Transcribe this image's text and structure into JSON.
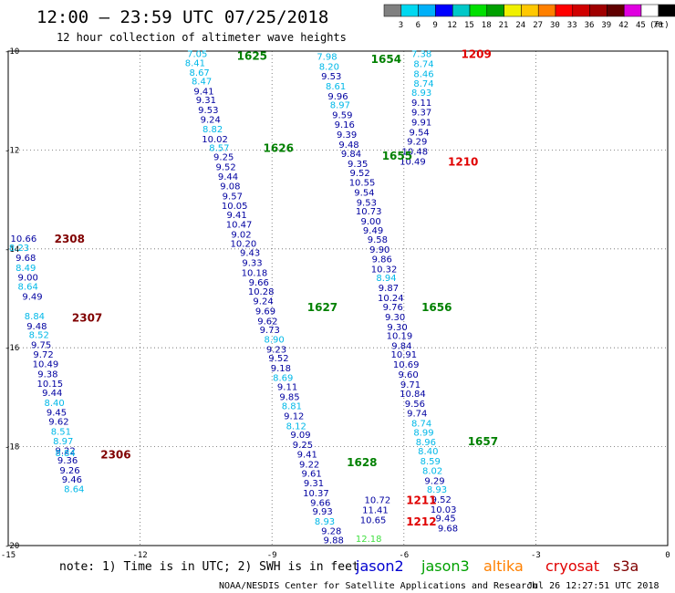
{
  "header": {
    "title": "12:00 — 23:59 UTC 07/25/2018",
    "subtitle": "12 hour collection of altimeter wave heights"
  },
  "color_bar": {
    "unit": "(ft)",
    "colors": [
      "#808080",
      "#00d8f0",
      "#00b0f8",
      "#0000ff",
      "#00c8c8",
      "#00e000",
      "#00a000",
      "#f0f000",
      "#ffc800",
      "#ff8000",
      "#ff0000",
      "#d00000",
      "#a00000",
      "#600000",
      "#e000e0",
      "#ffffff",
      "#000000"
    ],
    "labels": [
      "3",
      "6",
      "9",
      "12",
      "15",
      "18",
      "21",
      "24",
      "27",
      "30",
      "33",
      "36",
      "39",
      "42",
      "45",
      "70"
    ]
  },
  "chart_data": {
    "type": "scatter",
    "xlim": [
      -15,
      0
    ],
    "ylim": [
      -20,
      -10
    ],
    "x_ticks": [
      "-15",
      "-12",
      "-9",
      "-6",
      "-3",
      "0"
    ],
    "y_ticks": [
      "-10",
      "-12",
      "-14",
      "-16",
      "-18",
      "-20"
    ],
    "grid": true,
    "series": [
      {
        "name": "jason2 1625-1626-1627-1628",
        "color": "#0000a0",
        "points": [
          [
            -10.7,
            -10.05,
            "7.05"
          ],
          [
            -10.75,
            -10.23,
            "8.41"
          ],
          [
            -10.65,
            -10.42,
            "8.67"
          ],
          [
            -10.6,
            -10.6,
            "8.47"
          ],
          [
            -10.55,
            -10.8,
            "9.41"
          ],
          [
            -10.5,
            -10.98,
            "9.31"
          ],
          [
            -10.45,
            -11.18,
            "9.53"
          ],
          [
            -10.4,
            -11.37,
            "9.24"
          ],
          [
            -10.35,
            -11.57,
            "8.82"
          ],
          [
            -10.3,
            -11.77,
            "10.02"
          ],
          [
            -10.2,
            -11.95,
            "8.57"
          ],
          [
            -10.1,
            -12.13,
            "9.25"
          ],
          [
            -10.05,
            -12.33,
            "9.52"
          ],
          [
            -10.0,
            -12.53,
            "9.44"
          ],
          [
            -9.95,
            -12.72,
            "9.08"
          ],
          [
            -9.9,
            -12.92,
            "9.57"
          ],
          [
            -9.85,
            -13.12,
            "10.05"
          ],
          [
            -9.8,
            -13.3,
            "9.41"
          ],
          [
            -9.75,
            -13.5,
            "10.47"
          ],
          [
            -9.7,
            -13.7,
            "9.02"
          ],
          [
            -9.65,
            -13.88,
            "10.20"
          ],
          [
            -9.5,
            -14.07,
            "9.43"
          ],
          [
            -9.45,
            -14.27,
            "9.33"
          ],
          [
            -9.4,
            -14.47,
            "10.18"
          ],
          [
            -9.3,
            -14.67,
            "9.66"
          ],
          [
            -9.25,
            -14.85,
            "10.28"
          ],
          [
            -9.2,
            -15.05,
            "9.24"
          ],
          [
            -9.15,
            -15.25,
            "9.69"
          ],
          [
            -9.1,
            -15.45,
            "9.62"
          ],
          [
            -9.05,
            -15.63,
            "9.73"
          ],
          [
            -8.95,
            -15.82,
            "8.90"
          ],
          [
            -8.9,
            -16.02,
            "9.23"
          ],
          [
            -8.85,
            -16.2,
            "9.52"
          ],
          [
            -8.8,
            -16.4,
            "9.18"
          ],
          [
            -8.75,
            -16.6,
            "8.69"
          ],
          [
            -8.65,
            -16.78,
            "9.11"
          ],
          [
            -8.6,
            -16.98,
            "9.85"
          ],
          [
            -8.55,
            -17.17,
            "8.81"
          ],
          [
            -8.5,
            -17.37,
            "9.12"
          ],
          [
            -8.45,
            -17.57,
            "8.12"
          ],
          [
            -8.35,
            -17.75,
            "9.09"
          ],
          [
            -8.3,
            -17.95,
            "9.25"
          ],
          [
            -8.2,
            -18.15,
            "9.41"
          ],
          [
            -8.15,
            -18.35,
            "9.22"
          ],
          [
            -8.1,
            -18.53,
            "9.61"
          ],
          [
            -8.05,
            -18.73,
            "9.31"
          ],
          [
            -8.0,
            -18.93,
            "10.37"
          ],
          [
            -7.9,
            -19.12,
            "9.66"
          ],
          [
            -7.85,
            -19.3,
            "9.93"
          ],
          [
            -7.8,
            -19.5,
            "8.93"
          ],
          [
            -7.65,
            -19.7,
            "9.28"
          ],
          [
            -7.6,
            -19.88,
            "9.88"
          ]
        ]
      },
      {
        "name": "jason2 1654-1655-1656-1657",
        "color": "#0000a0",
        "points": [
          [
            -7.75,
            -10.1,
            "7.98"
          ],
          [
            -7.7,
            -10.3,
            "8.20"
          ],
          [
            -7.65,
            -10.5,
            "9.53"
          ],
          [
            -7.55,
            -10.7,
            "8.61"
          ],
          [
            -7.5,
            -10.9,
            "9.96"
          ],
          [
            -7.45,
            -11.08,
            "8.97"
          ],
          [
            -7.4,
            -11.28,
            "9.59"
          ],
          [
            -7.35,
            -11.48,
            "9.16"
          ],
          [
            -7.3,
            -11.68,
            "9.39"
          ],
          [
            -7.25,
            -11.88,
            "9.48"
          ],
          [
            -7.2,
            -12.07,
            "9.84"
          ],
          [
            -7.05,
            -12.27,
            "9.35"
          ],
          [
            -7.0,
            -12.45,
            "9.52"
          ],
          [
            -6.95,
            -12.65,
            "10.55"
          ],
          [
            -6.9,
            -12.85,
            "9.54"
          ],
          [
            -6.85,
            -13.05,
            "9.53"
          ],
          [
            -6.8,
            -13.23,
            "10.73"
          ],
          [
            -6.75,
            -13.43,
            "9.00"
          ],
          [
            -6.7,
            -13.62,
            "9.49"
          ],
          [
            -6.6,
            -13.8,
            "9.58"
          ],
          [
            -6.55,
            -14.0,
            "9.90"
          ],
          [
            -6.5,
            -14.2,
            "9.86"
          ],
          [
            -6.45,
            -14.4,
            "10.32"
          ],
          [
            -6.4,
            -14.58,
            "8.94"
          ],
          [
            -6.35,
            -14.78,
            "9.87"
          ],
          [
            -6.3,
            -14.98,
            "10.24"
          ],
          [
            -6.25,
            -15.17,
            "9.76"
          ],
          [
            -6.2,
            -15.37,
            "9.30"
          ],
          [
            -6.15,
            -15.57,
            "9.30"
          ],
          [
            -6.1,
            -15.75,
            "10.19"
          ],
          [
            -6.05,
            -15.95,
            "9.84"
          ],
          [
            -6.0,
            -16.13,
            "10.91"
          ],
          [
            -5.95,
            -16.33,
            "10.69"
          ],
          [
            -5.9,
            -16.53,
            "9.60"
          ],
          [
            -5.85,
            -16.73,
            "9.71"
          ],
          [
            -5.8,
            -16.92,
            "10.84"
          ],
          [
            -5.75,
            -17.12,
            "9.56"
          ],
          [
            -5.7,
            -17.32,
            "9.74"
          ],
          [
            -5.6,
            -17.52,
            "8.74"
          ],
          [
            -5.55,
            -17.7,
            "8.99"
          ],
          [
            -5.5,
            -17.9,
            "8.96"
          ],
          [
            -5.45,
            -18.08,
            "8.40"
          ],
          [
            -5.4,
            -18.28,
            "8.59"
          ],
          [
            -5.35,
            -18.48,
            "8.02"
          ],
          [
            -5.3,
            -18.68,
            "9.29"
          ],
          [
            -5.25,
            -18.86,
            "8.93"
          ],
          [
            -5.15,
            -19.06,
            "9.52"
          ],
          [
            -5.1,
            -19.26,
            "10.03"
          ],
          [
            -5.05,
            -19.44,
            "9.45"
          ],
          [
            -5.0,
            -19.64,
            "9.68"
          ]
        ]
      },
      {
        "name": "jason2 1209-1210",
        "color": "#0000a0",
        "points": [
          [
            -5.6,
            -10.05,
            "7.38"
          ],
          [
            -5.55,
            -10.25,
            "8.74"
          ],
          [
            -5.55,
            -10.45,
            "8.46"
          ],
          [
            -5.55,
            -10.65,
            "8.74"
          ],
          [
            -5.6,
            -10.83,
            "8.93"
          ],
          [
            -5.6,
            -11.03,
            "9.11"
          ],
          [
            -5.6,
            -11.23,
            "9.37"
          ],
          [
            -5.6,
            -11.43,
            "9.91"
          ],
          [
            -5.65,
            -11.63,
            "9.54"
          ],
          [
            -5.7,
            -11.82,
            "9.29"
          ],
          [
            -5.75,
            -12.02,
            "10.48"
          ],
          [
            -5.8,
            -12.22,
            "10.49"
          ]
        ]
      },
      {
        "name": "jason2 1211-1212",
        "color": "#0000a0",
        "points": [
          [
            -6.6,
            -19.07,
            "10.72"
          ],
          [
            -6.65,
            -19.27,
            "11.41"
          ],
          [
            -6.7,
            -19.47,
            "10.65"
          ]
        ]
      },
      {
        "name": "jason3 2306-2307-2308",
        "color": "#0000a0",
        "points": [
          [
            -14.65,
            -13.78,
            "10.66"
          ],
          [
            -14.75,
            -13.97,
            "8.23"
          ],
          [
            -14.6,
            -14.17,
            "9.68"
          ],
          [
            -14.6,
            -14.37,
            "8.49"
          ],
          [
            -14.55,
            -14.57,
            "9.00"
          ],
          [
            -14.55,
            -14.75,
            "8.64"
          ],
          [
            -14.45,
            -14.95,
            "9.49"
          ],
          [
            -14.4,
            -15.35,
            "8.84"
          ],
          [
            -14.35,
            -15.55,
            "9.48"
          ],
          [
            -14.3,
            -15.73,
            "8.52"
          ],
          [
            -14.25,
            -15.93,
            "9.75"
          ],
          [
            -14.2,
            -16.13,
            "9.72"
          ],
          [
            -14.15,
            -16.32,
            "10.49"
          ],
          [
            -14.1,
            -16.52,
            "9.38"
          ],
          [
            -14.05,
            -16.72,
            "10.15"
          ],
          [
            -14.0,
            -16.9,
            "9.44"
          ],
          [
            -13.95,
            -17.1,
            "8.40"
          ],
          [
            -13.9,
            -17.3,
            "9.45"
          ],
          [
            -13.85,
            -17.48,
            "9.62"
          ],
          [
            -13.8,
            -17.68,
            "8.51"
          ],
          [
            -13.75,
            -17.88,
            "8.97"
          ],
          [
            -13.7,
            -18.07,
            "9.22"
          ],
          [
            -13.7,
            -18.12,
            "8.84"
          ],
          [
            -13.65,
            -18.27,
            "9.36"
          ],
          [
            -13.6,
            -18.47,
            "9.26"
          ],
          [
            -13.55,
            -18.65,
            "9.46"
          ],
          [
            -13.5,
            -18.85,
            "8.64"
          ]
        ]
      },
      {
        "name": "jason3 extra",
        "color": "#40e040",
        "points": [
          [
            -6.8,
            -19.85,
            "12.18"
          ]
        ]
      }
    ],
    "pass_labels": [
      {
        "text": "1625",
        "x": -9.8,
        "y": -10.08,
        "color": "#008000"
      },
      {
        "text": "1626",
        "x": -9.2,
        "y": -11.95,
        "color": "#008000"
      },
      {
        "text": "1627",
        "x": -8.2,
        "y": -15.17,
        "color": "#008000"
      },
      {
        "text": "1628",
        "x": -7.3,
        "y": -18.3,
        "color": "#008000"
      },
      {
        "text": "1654",
        "x": -6.75,
        "y": -10.15,
        "color": "#008000"
      },
      {
        "text": "1655",
        "x": -6.5,
        "y": -12.1,
        "color": "#008000"
      },
      {
        "text": "1656",
        "x": -5.6,
        "y": -15.17,
        "color": "#008000"
      },
      {
        "text": "1657",
        "x": -4.55,
        "y": -17.88,
        "color": "#008000"
      },
      {
        "text": "1209",
        "x": -4.7,
        "y": -10.05,
        "color": "#e00000"
      },
      {
        "text": "1210",
        "x": -5.0,
        "y": -12.22,
        "color": "#e00000"
      },
      {
        "text": "1211",
        "x": -5.95,
        "y": -19.07,
        "color": "#e00000"
      },
      {
        "text": "1212",
        "x": -5.95,
        "y": -19.5,
        "color": "#e00000"
      },
      {
        "text": "2308",
        "x": -13.95,
        "y": -13.78,
        "color": "#800000"
      },
      {
        "text": "2307",
        "x": -13.55,
        "y": -15.38,
        "color": "#800000"
      },
      {
        "text": "2306",
        "x": -12.9,
        "y": -18.15,
        "color": "#800000"
      }
    ]
  },
  "legend": {
    "note": "note:  1) Time is in UTC;  2) SWH is in feet",
    "items": [
      {
        "label": "jason2",
        "color": "#0000d0"
      },
      {
        "label": "jason3",
        "color": "#00a000"
      },
      {
        "label": "altika",
        "color": "#ff8000"
      },
      {
        "label": "cryosat",
        "color": "#e00000"
      },
      {
        "label": "s3a",
        "color": "#800000"
      }
    ]
  },
  "footer": {
    "credit": "NOAA/NESDIS Center for Satellite Applications and Research",
    "timestamp": "Jul 26 12:27:51 UTC 2018"
  }
}
